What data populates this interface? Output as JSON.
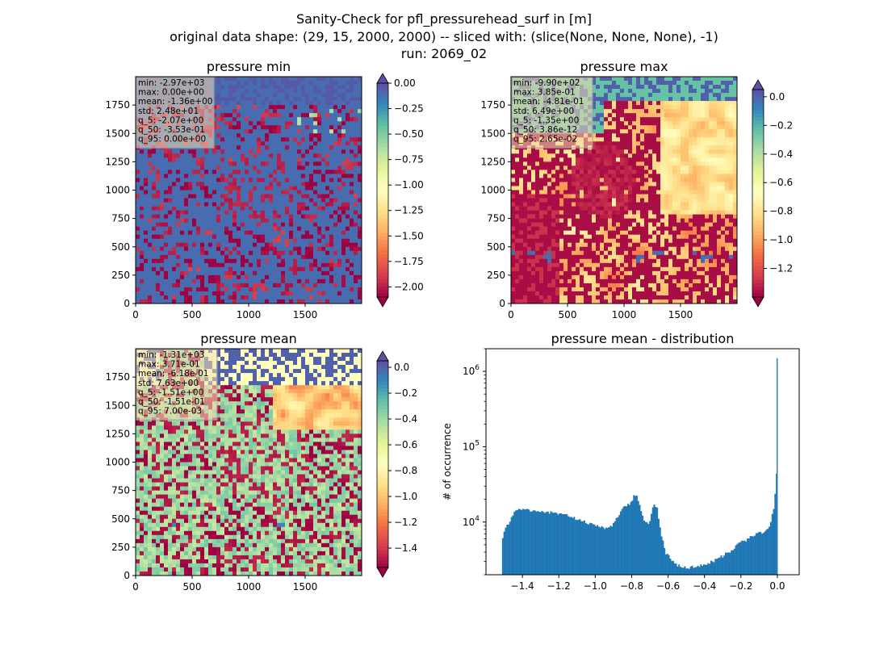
{
  "suptitle": [
    "Sanity-Check for pfl_pressurehead_surf in [m]",
    "original data shape: (29, 15, 2000, 2000) -- sliced with: (slice(None, None, None), -1)",
    "run: 2069_02"
  ],
  "colors": {
    "histogram": "#1f77b4",
    "colormap": "Spectral"
  },
  "chart_data": [
    {
      "type": "heatmap",
      "title": "pressure min",
      "colormap": "Spectral",
      "xlim": [
        0,
        2000
      ],
      "ylim": [
        0,
        2000
      ],
      "xticks": [
        "0",
        "500",
        "1000",
        "1500"
      ],
      "yticks": [
        "0",
        "250",
        "500",
        "750",
        "1000",
        "1250",
        "1500",
        "1750"
      ],
      "colorbar": {
        "range": [
          -2.1,
          0.0
        ],
        "extend": "both",
        "ticks": [
          "0.00",
          "−0.25",
          "−0.50",
          "−0.75",
          "−1.00",
          "−1.25",
          "−1.50",
          "−1.75",
          "−2.00"
        ],
        "tick_values": [
          0,
          -0.25,
          -0.5,
          -0.75,
          -1.0,
          -1.25,
          -1.5,
          -1.75,
          -2.0
        ]
      },
      "stats": [
        "min: -2.97e+03",
        "max: 0.00e+00",
        "mean: -1.36e+00",
        "std: 2.48e+01",
        "q_5: -2.07e+00",
        "q_50: -3.53e-01",
        "q_95: 0.00e+00"
      ],
      "pattern": "min"
    },
    {
      "type": "heatmap",
      "title": "pressure max",
      "colormap": "Spectral",
      "xlim": [
        0,
        2000
      ],
      "ylim": [
        0,
        2000
      ],
      "xticks": [
        "0",
        "500",
        "1000",
        "1500"
      ],
      "yticks": [
        "0",
        "250",
        "500",
        "750",
        "1000",
        "1250",
        "1500",
        "1750"
      ],
      "colorbar": {
        "range": [
          -1.4,
          0.05
        ],
        "extend": "both",
        "ticks": [
          "0.0",
          "−0.2",
          "−0.4",
          "−0.6",
          "−0.8",
          "−1.0",
          "−1.2"
        ],
        "tick_values": [
          0,
          -0.2,
          -0.4,
          -0.6,
          -0.8,
          -1.0,
          -1.2
        ]
      },
      "stats": [
        "min: -9.90e+02",
        "max: 3.85e-01",
        "mean: -4.81e-01",
        "std: 6.49e+00",
        "q_5: -1.35e+00",
        "q_50: 3.86e-12",
        "q_95: 2.65e-02"
      ],
      "pattern": "max"
    },
    {
      "type": "heatmap",
      "title": "pressure mean",
      "colormap": "Spectral",
      "xlim": [
        0,
        2000
      ],
      "ylim": [
        0,
        2000
      ],
      "xticks": [
        "0",
        "500",
        "1000",
        "1500"
      ],
      "yticks": [
        "0",
        "250",
        "500",
        "750",
        "1000",
        "1250",
        "1500",
        "1750"
      ],
      "colorbar": {
        "range": [
          -1.55,
          0.05
        ],
        "extend": "both",
        "ticks": [
          "0.0",
          "−0.2",
          "−0.4",
          "−0.6",
          "−0.8",
          "−1.0",
          "−1.2",
          "−1.4"
        ],
        "tick_values": [
          0,
          -0.2,
          -0.4,
          -0.6,
          -0.8,
          -1.0,
          -1.2,
          -1.4
        ]
      },
      "stats": [
        "min: -1.31e+03",
        "max: 3.71e-01",
        "mean: -6.18e-01",
        "std: 7.63e+00",
        "q_5: -1.51e+00",
        "q_50: -1.51e-01",
        "q_95: 7.00e-03"
      ],
      "pattern": "mean"
    },
    {
      "type": "bar",
      "title": "pressure mean - distribution",
      "ylabel": "# of occurrence",
      "xlabel": "",
      "yscale": "log",
      "xlim": [
        -1.6,
        0.12
      ],
      "ylim": [
        2000,
        2000000
      ],
      "xticks": [
        "−1.4",
        "−1.2",
        "−1.0",
        "−0.8",
        "−0.6",
        "−0.4",
        "−0.2",
        "0.0"
      ],
      "xtick_values": [
        -1.4,
        -1.2,
        -1.0,
        -0.8,
        -0.6,
        -0.4,
        -0.2,
        0.0
      ],
      "ytick_exponents": [
        "4",
        "5",
        "6"
      ],
      "ytick_values": [
        10000,
        100000,
        1000000
      ],
      "color": "#1f77b4",
      "bin_width": 0.008,
      "profile": [
        [
          -1.512,
          6000
        ],
        [
          -1.5,
          8000
        ],
        [
          -1.49,
          8800
        ],
        [
          -1.47,
          10500
        ],
        [
          -1.45,
          13000
        ],
        [
          -1.43,
          15500
        ],
        [
          -1.4,
          15500
        ],
        [
          -1.35,
          14800
        ],
        [
          -1.3,
          14300
        ],
        [
          -1.25,
          14000
        ],
        [
          -1.2,
          13600
        ],
        [
          -1.15,
          12600
        ],
        [
          -1.1,
          11500
        ],
        [
          -1.05,
          10300
        ],
        [
          -1.0,
          9300
        ],
        [
          -0.96,
          8800
        ],
        [
          -0.93,
          8700
        ],
        [
          -0.91,
          9300
        ],
        [
          -0.89,
          10800
        ],
        [
          -0.87,
          13600
        ],
        [
          -0.85,
          16500
        ],
        [
          -0.83,
          18500
        ],
        [
          -0.815,
          17000
        ],
        [
          -0.8,
          21000
        ],
        [
          -0.785,
          23500
        ],
        [
          -0.77,
          22500
        ],
        [
          -0.755,
          17500
        ],
        [
          -0.74,
          13500
        ],
        [
          -0.725,
          10500
        ],
        [
          -0.71,
          10000
        ],
        [
          -0.7,
          11500
        ],
        [
          -0.685,
          16000
        ],
        [
          -0.67,
          18000
        ],
        [
          -0.66,
          16000
        ],
        [
          -0.65,
          11500
        ],
        [
          -0.635,
          7000
        ],
        [
          -0.62,
          4800
        ],
        [
          -0.61,
          4000
        ],
        [
          -0.595,
          3700
        ],
        [
          -0.58,
          3300
        ],
        [
          -0.565,
          3000
        ],
        [
          -0.55,
          2800
        ],
        [
          -0.52,
          2700
        ],
        [
          -0.49,
          2650
        ],
        [
          -0.46,
          2700
        ],
        [
          -0.43,
          2800
        ],
        [
          -0.4,
          2950
        ],
        [
          -0.37,
          3100
        ],
        [
          -0.34,
          3300
        ],
        [
          -0.31,
          3650
        ],
        [
          -0.28,
          4100
        ],
        [
          -0.25,
          4600
        ],
        [
          -0.22,
          5200
        ],
        [
          -0.19,
          5900
        ],
        [
          -0.16,
          6500
        ],
        [
          -0.13,
          7100
        ],
        [
          -0.1,
          7600
        ],
        [
          -0.07,
          8200
        ],
        [
          -0.05,
          9200
        ],
        [
          -0.035,
          11000
        ],
        [
          -0.022,
          15000
        ],
        [
          -0.015,
          20000
        ],
        [
          -0.008,
          30000
        ],
        [
          -0.004,
          48000
        ],
        [
          0.0,
          1500000
        ]
      ]
    }
  ]
}
